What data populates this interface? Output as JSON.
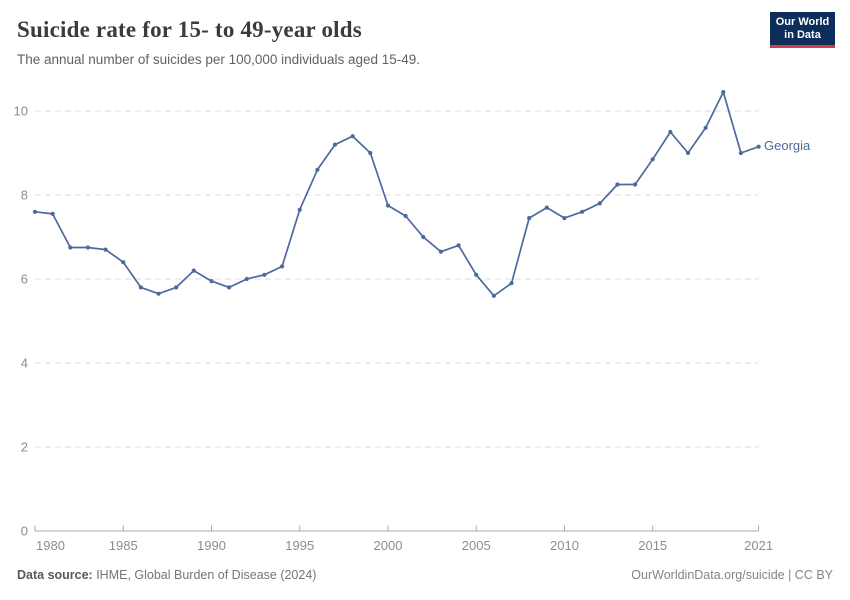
{
  "header": {
    "title": "Suicide rate for 15- to 49-year olds",
    "subtitle": "The annual number of suicides per 100,000 individuals aged 15-49."
  },
  "logo": {
    "line1": "Our World",
    "line2": "in Data",
    "bg_color": "#0d2e5b",
    "accent_color": "#d13d42"
  },
  "chart_data": {
    "type": "line",
    "title": "Suicide rate for 15- to 49-year olds",
    "xlabel": "",
    "ylabel": "",
    "grid": "horizontal-dashed",
    "legend_position": "line-end-label",
    "xlim": [
      1980,
      2021
    ],
    "ylim": [
      0,
      10
    ],
    "x_ticks": [
      1980,
      1985,
      1990,
      1995,
      2000,
      2005,
      2010,
      2015,
      2021
    ],
    "y_ticks": [
      0,
      2,
      4,
      6,
      8,
      10
    ],
    "x": [
      1980,
      1981,
      1982,
      1983,
      1984,
      1985,
      1986,
      1987,
      1988,
      1989,
      1990,
      1991,
      1992,
      1993,
      1994,
      1995,
      1996,
      1997,
      1998,
      1999,
      2000,
      2001,
      2002,
      2003,
      2004,
      2005,
      2006,
      2007,
      2008,
      2009,
      2010,
      2011,
      2012,
      2013,
      2014,
      2015,
      2016,
      2017,
      2018,
      2019,
      2020,
      2021
    ],
    "series": [
      {
        "name": "Georgia",
        "color": "#4c6a9c",
        "values": [
          7.6,
          7.55,
          6.75,
          6.75,
          6.7,
          6.4,
          5.8,
          5.65,
          5.8,
          6.2,
          5.95,
          5.8,
          6.0,
          6.1,
          6.3,
          7.65,
          8.6,
          9.2,
          9.4,
          9.0,
          7.75,
          7.5,
          7.0,
          6.65,
          6.8,
          6.1,
          5.6,
          5.9,
          7.45,
          7.7,
          7.45,
          7.6,
          7.8,
          8.25,
          8.25,
          8.85,
          9.5,
          9.0,
          9.6,
          10.45,
          9.0,
          9.15
        ]
      }
    ],
    "colors": {
      "gridline": "#dcdcdc",
      "axis": "#a8a8a8",
      "tick_label": "#8d8d8d"
    }
  },
  "footer": {
    "source_label": "Data source:",
    "source_text": " IHME, Global Burden of Disease (2024)",
    "right_text": "OurWorldinData.org/suicide | CC BY"
  }
}
